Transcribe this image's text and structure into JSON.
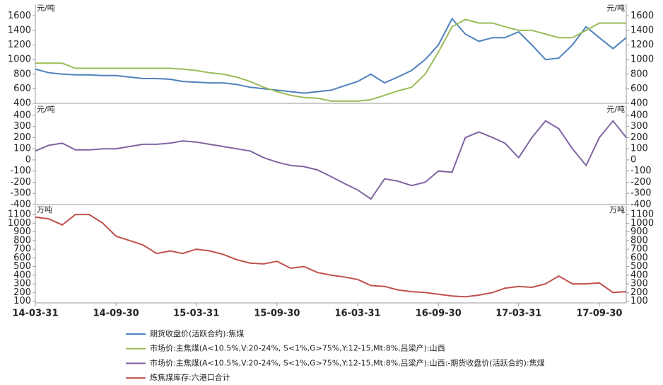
{
  "chart_data": [
    {
      "type": "line",
      "unit": "元/吨",
      "ylim": [
        400,
        1700
      ],
      "yticks": [
        400,
        600,
        800,
        1000,
        1200,
        1400,
        1600
      ],
      "xlim": [
        "14-03-31",
        "17-11-30"
      ],
      "x": [
        "14-03-31",
        "14-04-30",
        "14-05-31",
        "14-06-30",
        "14-07-31",
        "14-08-31",
        "14-09-30",
        "14-10-31",
        "14-11-30",
        "14-12-31",
        "15-01-31",
        "15-02-28",
        "15-03-31",
        "15-04-30",
        "15-05-31",
        "15-06-30",
        "15-07-31",
        "15-08-31",
        "15-09-30",
        "15-10-31",
        "15-11-30",
        "15-12-31",
        "16-01-31",
        "16-02-29",
        "16-03-31",
        "16-04-30",
        "16-05-31",
        "16-06-30",
        "16-07-31",
        "16-08-31",
        "16-09-30",
        "16-10-31",
        "16-11-30",
        "16-12-31",
        "17-01-31",
        "17-02-28",
        "17-03-31",
        "17-04-30",
        "17-05-31",
        "17-06-30",
        "17-07-31",
        "17-08-31",
        "17-09-30",
        "17-10-31",
        "17-11-30"
      ],
      "series": [
        {
          "name": "期货收盘价(活跃合约):焦煤",
          "color": "#4f81bd",
          "values": [
            870,
            820,
            800,
            790,
            790,
            780,
            780,
            760,
            740,
            740,
            730,
            700,
            690,
            680,
            680,
            660,
            620,
            600,
            580,
            560,
            540,
            560,
            580,
            640,
            700,
            800,
            680,
            760,
            850,
            1000,
            1200,
            1560,
            1350,
            1250,
            1300,
            1300,
            1380,
            1200,
            1000,
            1020,
            1200,
            1450,
            1300,
            1150,
            1300
          ]
        },
        {
          "name": "市场价:主焦煤(A<10.5%,V:20-24%, S<1%,G>75%,Y:12-15,Mt:8%,吕梁产):山西",
          "color": "#9bbb59",
          "values": [
            950,
            950,
            950,
            880,
            880,
            880,
            880,
            880,
            880,
            880,
            880,
            870,
            850,
            820,
            800,
            760,
            700,
            620,
            560,
            510,
            480,
            470,
            430,
            430,
            430,
            450,
            510,
            570,
            620,
            800,
            1100,
            1450,
            1550,
            1500,
            1500,
            1450,
            1400,
            1400,
            1350,
            1300,
            1300,
            1400,
            1500,
            1500,
            1500
          ]
        }
      ]
    },
    {
      "type": "line",
      "unit": "元/吨",
      "ylim": [
        -400,
        450
      ],
      "yticks": [
        -400,
        -300,
        -200,
        -100,
        0,
        100,
        200,
        300,
        400
      ],
      "xlim": [
        "14-03-31",
        "17-11-30"
      ],
      "x": [
        "14-03-31",
        "14-04-30",
        "14-05-31",
        "14-06-30",
        "14-07-31",
        "14-08-31",
        "14-09-30",
        "14-10-31",
        "14-11-30",
        "14-12-31",
        "15-01-31",
        "15-02-28",
        "15-03-31",
        "15-04-30",
        "15-05-31",
        "15-06-30",
        "15-07-31",
        "15-08-31",
        "15-09-30",
        "15-10-31",
        "15-11-30",
        "15-12-31",
        "16-01-31",
        "16-02-29",
        "16-03-31",
        "16-04-30",
        "16-05-31",
        "16-06-30",
        "16-07-31",
        "16-08-31",
        "16-09-30",
        "16-10-31",
        "16-11-30",
        "16-12-31",
        "17-01-31",
        "17-02-28",
        "17-03-31",
        "17-04-30",
        "17-05-31",
        "17-06-30",
        "17-07-31",
        "17-08-31",
        "17-09-30",
        "17-10-31",
        "17-11-30"
      ],
      "series": [
        {
          "name": "市场价:主焦煤(A<10.5%,V:20-24%, S<1%,G>75%,Y:12-15,Mt:8%,吕梁产):山西:-期货收盘价(活跃合约):焦煤",
          "color": "#8064a2",
          "values": [
            80,
            130,
            150,
            90,
            90,
            100,
            100,
            120,
            140,
            140,
            150,
            170,
            160,
            140,
            120,
            100,
            80,
            20,
            -20,
            -50,
            -60,
            -90,
            -150,
            -210,
            -270,
            -350,
            -170,
            -190,
            -230,
            -200,
            -100,
            -110,
            200,
            250,
            200,
            150,
            20,
            200,
            350,
            280,
            100,
            -50,
            200,
            350,
            200
          ]
        }
      ]
    },
    {
      "type": "line",
      "unit": "万吨",
      "ylim": [
        80,
        1150
      ],
      "yticks": [
        100,
        200,
        300,
        400,
        500,
        600,
        700,
        800,
        900,
        1000,
        1100
      ],
      "xlim": [
        "14-03-31",
        "17-11-30"
      ],
      "xticks": [
        "14-03-31",
        "14-09-30",
        "15-03-31",
        "15-09-30",
        "16-03-31",
        "16-09-30",
        "17-03-31",
        "17-09-30"
      ],
      "x": [
        "14-03-31",
        "14-04-30",
        "14-05-31",
        "14-06-30",
        "14-07-31",
        "14-08-31",
        "14-09-30",
        "14-10-31",
        "14-11-30",
        "14-12-31",
        "15-01-31",
        "15-02-28",
        "15-03-31",
        "15-04-30",
        "15-05-31",
        "15-06-30",
        "15-07-31",
        "15-08-31",
        "15-09-30",
        "15-10-31",
        "15-11-30",
        "15-12-31",
        "16-01-31",
        "16-02-29",
        "16-03-31",
        "16-04-30",
        "16-05-31",
        "16-06-30",
        "16-07-31",
        "16-08-31",
        "16-09-30",
        "16-10-31",
        "16-11-30",
        "16-12-31",
        "17-01-31",
        "17-02-28",
        "17-03-31",
        "17-04-30",
        "17-05-31",
        "17-06-30",
        "17-07-31",
        "17-08-31",
        "17-09-30",
        "17-10-31",
        "17-11-30"
      ],
      "series": [
        {
          "name": "炼焦煤库存:六港口合计",
          "color": "#c0504d",
          "values": [
            1070,
            1050,
            980,
            1100,
            1100,
            1000,
            850,
            800,
            750,
            650,
            680,
            650,
            700,
            680,
            640,
            580,
            540,
            530,
            560,
            480,
            500,
            430,
            400,
            380,
            350,
            280,
            270,
            230,
            210,
            200,
            180,
            160,
            150,
            170,
            200,
            250,
            270,
            260,
            300,
            390,
            300,
            300,
            310,
            200,
            210
          ]
        }
      ]
    }
  ]
}
